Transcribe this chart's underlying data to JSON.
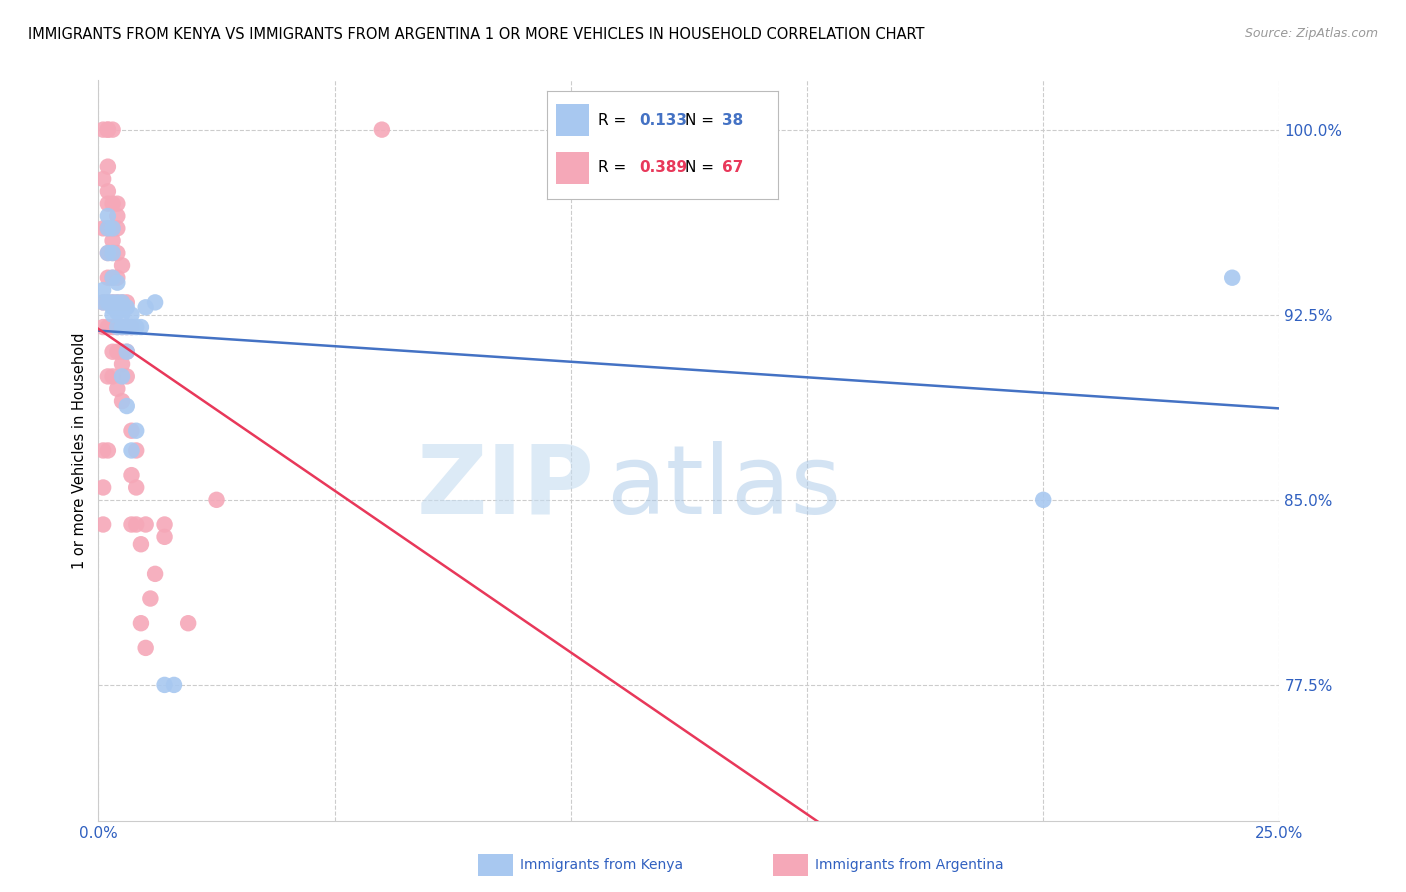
{
  "title": "IMMIGRANTS FROM KENYA VS IMMIGRANTS FROM ARGENTINA 1 OR MORE VEHICLES IN HOUSEHOLD CORRELATION CHART",
  "source": "Source: ZipAtlas.com",
  "ylabel": "1 or more Vehicles in Household",
  "xlim": [
    0.0,
    0.25
  ],
  "ylim": [
    0.72,
    1.02
  ],
  "xticks": [
    0.0,
    0.05,
    0.1,
    0.15,
    0.2,
    0.25
  ],
  "xticklabels": [
    "0.0%",
    "",
    "",
    "",
    "",
    "25.0%"
  ],
  "yticks": [
    0.775,
    0.85,
    0.925,
    1.0
  ],
  "yticklabels": [
    "77.5%",
    "85.0%",
    "92.5%",
    "100.0%"
  ],
  "kenya_color": "#A8C8F0",
  "argentina_color": "#F5A8B8",
  "kenya_R": 0.133,
  "kenya_N": 38,
  "argentina_R": 0.389,
  "argentina_N": 67,
  "kenya_line_color": "#4472C4",
  "argentina_line_color": "#E8385A",
  "watermark_zip": "ZIP",
  "watermark_atlas": "atlas",
  "kenya_scatter": [
    [
      0.001,
      0.93
    ],
    [
      0.001,
      0.935
    ],
    [
      0.002,
      0.93
    ],
    [
      0.002,
      0.95
    ],
    [
      0.002,
      0.96
    ],
    [
      0.002,
      0.965
    ],
    [
      0.003,
      0.925
    ],
    [
      0.003,
      0.928
    ],
    [
      0.003,
      0.93
    ],
    [
      0.003,
      0.94
    ],
    [
      0.003,
      0.95
    ],
    [
      0.003,
      0.96
    ],
    [
      0.004,
      0.92
    ],
    [
      0.004,
      0.926
    ],
    [
      0.004,
      0.928
    ],
    [
      0.004,
      0.93
    ],
    [
      0.004,
      0.938
    ],
    [
      0.005,
      0.9
    ],
    [
      0.005,
      0.92
    ],
    [
      0.005,
      0.925
    ],
    [
      0.005,
      0.928
    ],
    [
      0.005,
      0.93
    ],
    [
      0.006,
      0.888
    ],
    [
      0.006,
      0.91
    ],
    [
      0.006,
      0.92
    ],
    [
      0.006,
      0.928
    ],
    [
      0.007,
      0.87
    ],
    [
      0.007,
      0.92
    ],
    [
      0.007,
      0.925
    ],
    [
      0.008,
      0.878
    ],
    [
      0.008,
      0.92
    ],
    [
      0.009,
      0.92
    ],
    [
      0.01,
      0.928
    ],
    [
      0.012,
      0.93
    ],
    [
      0.014,
      0.775
    ],
    [
      0.016,
      0.775
    ],
    [
      0.2,
      0.85
    ],
    [
      0.24,
      0.94
    ]
  ],
  "argentina_scatter": [
    [
      0.001,
      0.84
    ],
    [
      0.001,
      0.855
    ],
    [
      0.001,
      0.87
    ],
    [
      0.001,
      0.92
    ],
    [
      0.001,
      0.93
    ],
    [
      0.001,
      0.96
    ],
    [
      0.001,
      0.98
    ],
    [
      0.001,
      1.0
    ],
    [
      0.002,
      0.87
    ],
    [
      0.002,
      0.9
    ],
    [
      0.002,
      0.92
    ],
    [
      0.002,
      0.93
    ],
    [
      0.002,
      0.94
    ],
    [
      0.002,
      0.95
    ],
    [
      0.002,
      0.96
    ],
    [
      0.002,
      0.97
    ],
    [
      0.002,
      0.975
    ],
    [
      0.002,
      0.985
    ],
    [
      0.002,
      1.0
    ],
    [
      0.002,
      1.0
    ],
    [
      0.003,
      0.9
    ],
    [
      0.003,
      0.91
    ],
    [
      0.003,
      0.92
    ],
    [
      0.003,
      0.93
    ],
    [
      0.003,
      0.94
    ],
    [
      0.003,
      0.95
    ],
    [
      0.003,
      0.955
    ],
    [
      0.003,
      0.96
    ],
    [
      0.003,
      0.97
    ],
    [
      0.003,
      1.0
    ],
    [
      0.004,
      0.895
    ],
    [
      0.004,
      0.91
    ],
    [
      0.004,
      0.92
    ],
    [
      0.004,
      0.93
    ],
    [
      0.004,
      0.94
    ],
    [
      0.004,
      0.95
    ],
    [
      0.004,
      0.96
    ],
    [
      0.004,
      0.965
    ],
    [
      0.004,
      0.97
    ],
    [
      0.005,
      0.89
    ],
    [
      0.005,
      0.905
    ],
    [
      0.005,
      0.91
    ],
    [
      0.005,
      0.92
    ],
    [
      0.005,
      0.93
    ],
    [
      0.005,
      0.945
    ],
    [
      0.006,
      0.9
    ],
    [
      0.006,
      0.91
    ],
    [
      0.006,
      0.92
    ],
    [
      0.006,
      0.93
    ],
    [
      0.007,
      0.84
    ],
    [
      0.007,
      0.86
    ],
    [
      0.007,
      0.878
    ],
    [
      0.007,
      0.92
    ],
    [
      0.008,
      0.84
    ],
    [
      0.008,
      0.855
    ],
    [
      0.008,
      0.87
    ],
    [
      0.009,
      0.8
    ],
    [
      0.009,
      0.832
    ],
    [
      0.01,
      0.79
    ],
    [
      0.01,
      0.84
    ],
    [
      0.011,
      0.81
    ],
    [
      0.012,
      0.82
    ],
    [
      0.014,
      0.835
    ],
    [
      0.014,
      0.84
    ],
    [
      0.019,
      0.8
    ],
    [
      0.025,
      0.85
    ],
    [
      0.06,
      1.0
    ]
  ]
}
